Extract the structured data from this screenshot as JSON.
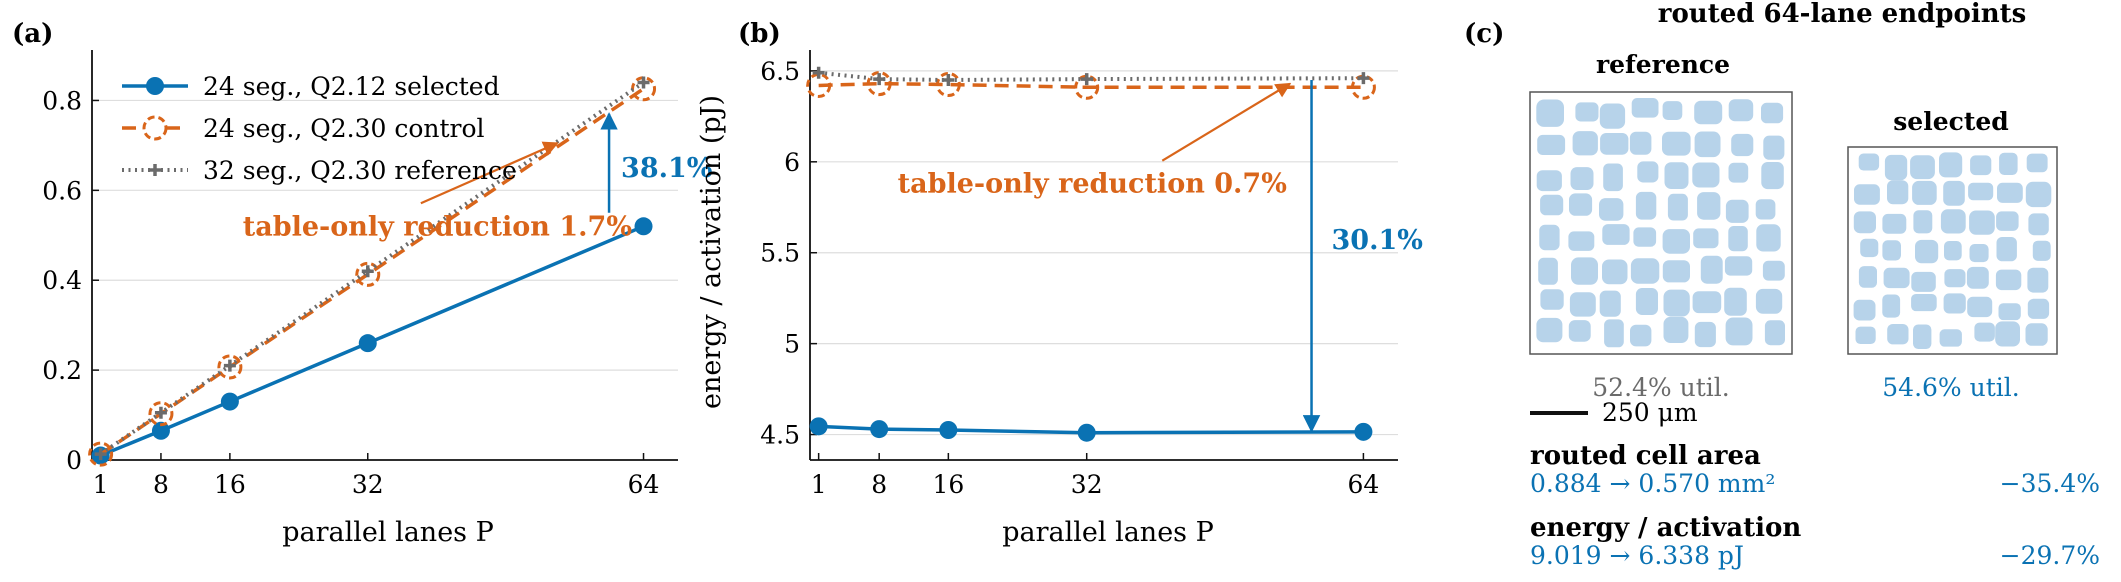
{
  "colors": {
    "selected": "#0a72b3",
    "control": "#d9651a",
    "reference": "#6b6b6b",
    "grid": "#dedede",
    "cell_fill": "#b7d3ea",
    "axis": "#111111"
  },
  "chart_data": [
    {
      "panel": "(a)",
      "type": "line",
      "title": "",
      "xlabel": "parallel lanes P",
      "ylabel": "",
      "x_ticks": [
        1,
        8,
        16,
        32,
        64
      ],
      "xlim": [
        0,
        68
      ],
      "y_ticks": [
        "0",
        "0.2",
        "0.4",
        "0.6",
        "0.8"
      ],
      "ylim": [
        0,
        0.89
      ],
      "grid": "horizontal",
      "legend": "top-left",
      "series": [
        {
          "name": "24 seg., Q2.12 selected",
          "key": "selected",
          "marker": "circle",
          "x": [
            1,
            8,
            16,
            32,
            64
          ],
          "y": [
            0.01,
            0.065,
            0.13,
            0.26,
            0.52
          ]
        },
        {
          "name": "24 seg., Q2.30 control",
          "key": "control",
          "marker": "open-circle",
          "x": [
            1,
            8,
            16,
            32,
            64
          ],
          "y": [
            0.013,
            0.103,
            0.207,
            0.413,
            0.826
          ]
        },
        {
          "name": "32 seg., Q2.30 reference",
          "key": "reference",
          "marker": "plus",
          "x": [
            1,
            8,
            16,
            32,
            64
          ],
          "y": [
            0.013,
            0.105,
            0.21,
            0.42,
            0.84
          ]
        }
      ],
      "annotations": [
        {
          "key": "selected",
          "text": "38.1%",
          "x": 60,
          "y_from": 0.55,
          "y_to": 0.77
        },
        {
          "key": "control",
          "text": "table-only reduction 1.7%",
          "text_x": 32,
          "text_y": 0.5,
          "arrow_to_x": 54,
          "arrow_to_y": 0.705
        }
      ]
    },
    {
      "panel": "(b)",
      "type": "line",
      "title": "",
      "xlabel": "parallel lanes P",
      "ylabel": "energy / activation (pJ)",
      "x_ticks": [
        1,
        8,
        16,
        32,
        64
      ],
      "xlim": [
        0,
        68
      ],
      "y_ticks": [
        "4.5",
        "5",
        "5.5",
        "6",
        "6.5"
      ],
      "ylim": [
        4.36,
        6.56
      ],
      "grid": "horizontal",
      "series": [
        {
          "name": "24 seg., Q2.12 selected",
          "key": "selected",
          "marker": "circle",
          "x": [
            1,
            8,
            16,
            32,
            64
          ],
          "y": [
            4.545,
            4.53,
            4.525,
            4.51,
            4.515
          ]
        },
        {
          "name": "24 seg., Q2.30 control",
          "key": "control",
          "marker": "open-circle",
          "x": [
            1,
            8,
            16,
            32,
            64
          ],
          "y": [
            6.42,
            6.43,
            6.425,
            6.41,
            6.41
          ]
        },
        {
          "name": "32 seg., Q2.30 reference",
          "key": "reference",
          "marker": "plus",
          "x": [
            1,
            8,
            16,
            32,
            64
          ],
          "y": [
            6.49,
            6.455,
            6.45,
            6.455,
            6.46
          ]
        }
      ],
      "annotations": [
        {
          "key": "selected",
          "text": "30.1%",
          "x": 58,
          "y_from": 6.45,
          "y_to": 4.52
        },
        {
          "key": "control",
          "text": "table-only reduction 0.7%",
          "text_x": 35,
          "text_y": 5.83,
          "arrow_to_x": 55.5,
          "arrow_to_y": 6.43
        }
      ]
    }
  ],
  "panel_c": {
    "label": "(c)",
    "title": "routed 64-lane endpoints",
    "reference": {
      "label": "reference",
      "util": "52.4% util."
    },
    "selected": {
      "label": "selected",
      "util": "54.6% util."
    },
    "scale_bar": "250 μm",
    "area": {
      "label": "routed cell area",
      "value": "0.884 → 0.570 mm²",
      "delta": "−35.4%"
    },
    "energy": {
      "label": "energy / activation",
      "value": "9.019 → 6.338 pJ",
      "delta": "−29.7%"
    }
  }
}
